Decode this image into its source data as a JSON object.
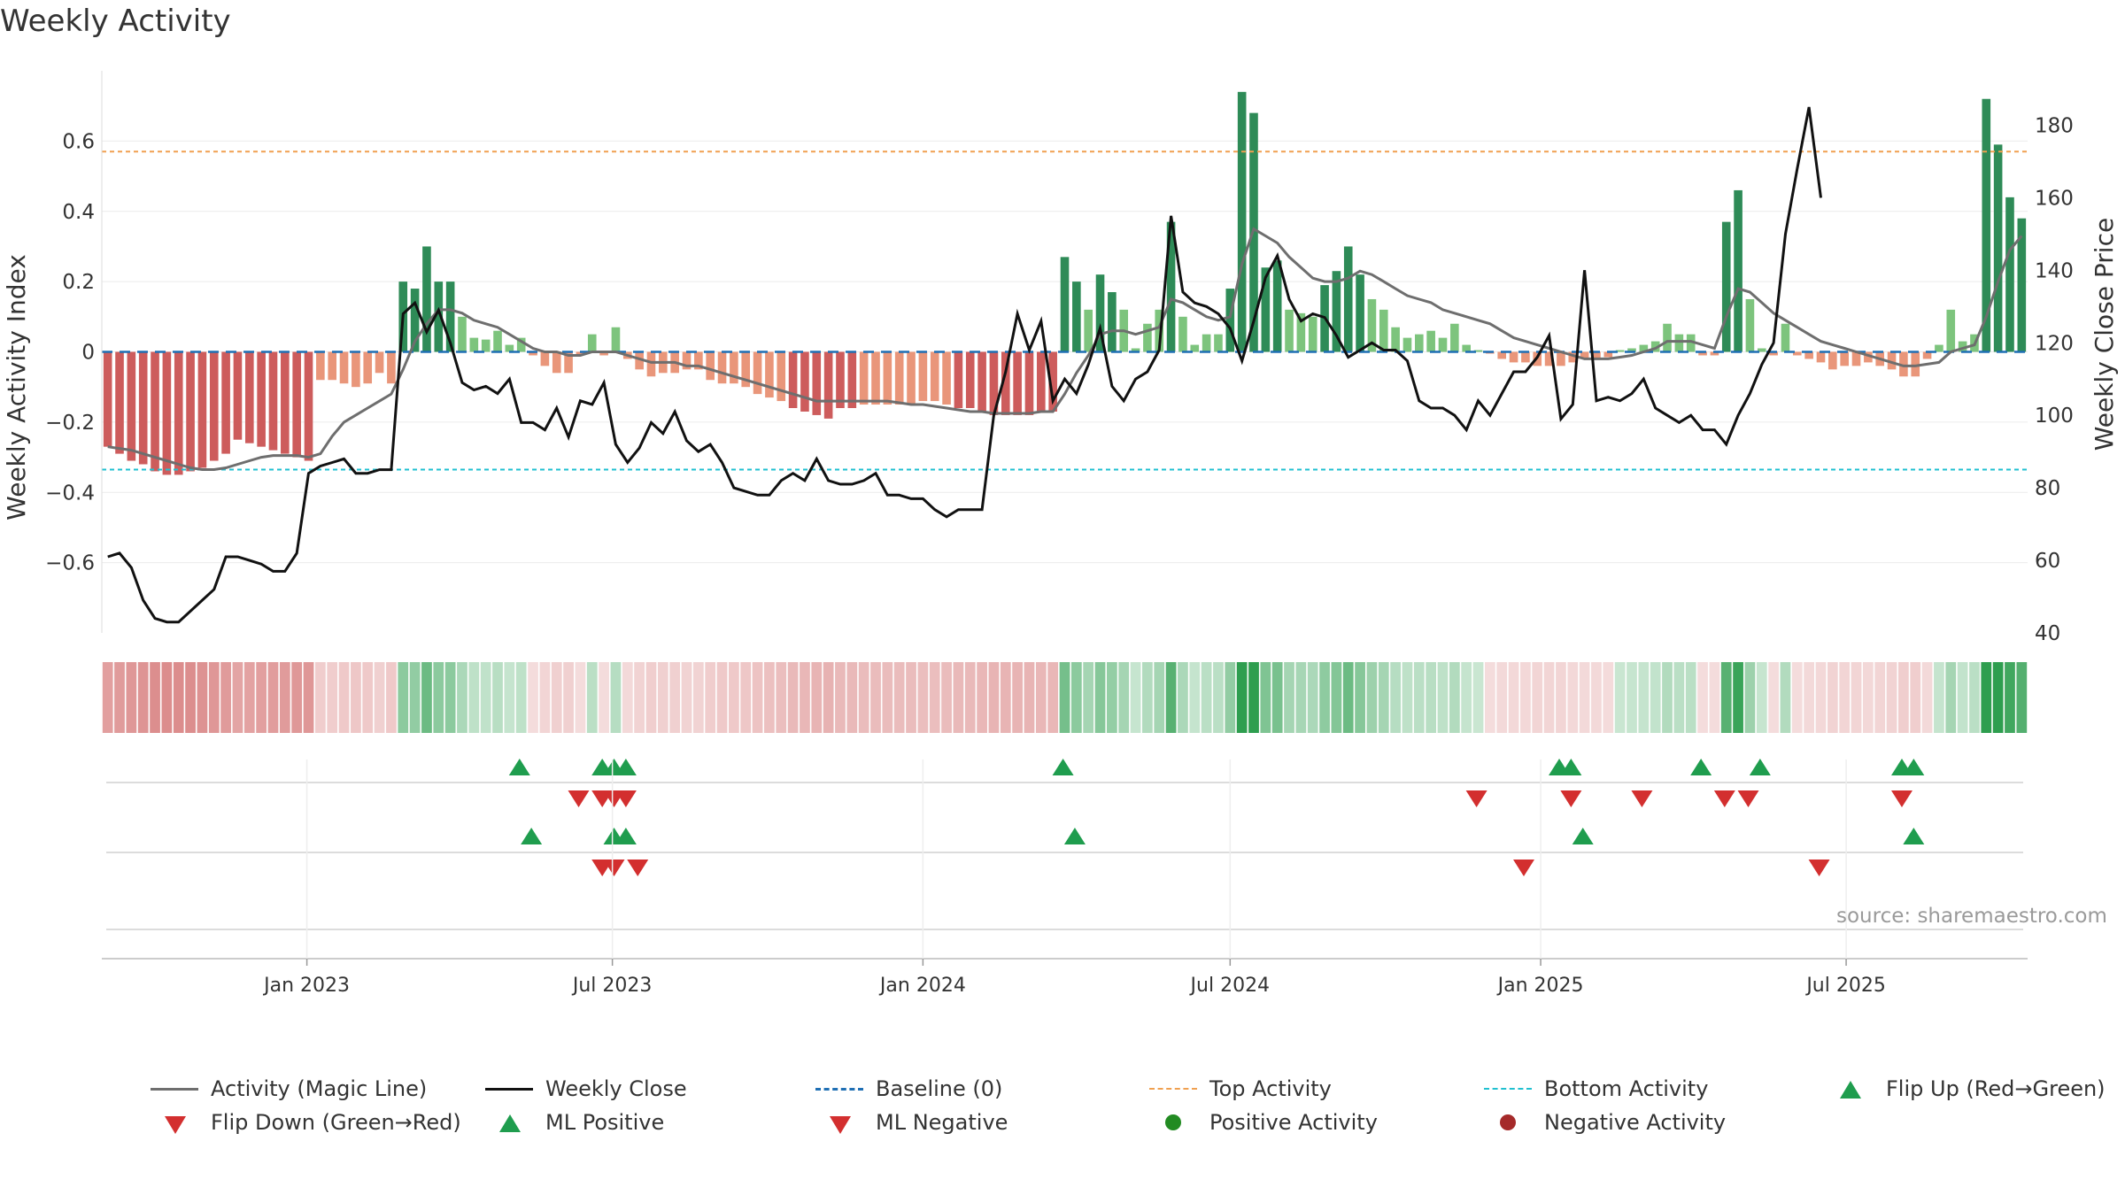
{
  "title": "Weekly Activity",
  "source": "source: sharemaestro.com",
  "colors": {
    "magic": "#6e6e6e",
    "close": "#111111",
    "baseline": "#1f6fb4",
    "top": "#f0a050",
    "bottom": "#20c0d0",
    "pos_strong": "#2e8b57",
    "pos_weak": "#7dc47d",
    "neg_strong": "#cd5c5c",
    "neg_weak": "#e9967a",
    "up_marker": "#1f9d4e",
    "down_marker": "#d32f2f",
    "pos_dot": "#228b22",
    "neg_dot": "#a52a2a"
  },
  "chart_data": {
    "type": "bar+line",
    "title": "Weekly Activity",
    "ylabel_left": "Weekly Activity Index",
    "ylabel_right": "Weekly Close Price",
    "ylim_left": [
      -0.8,
      0.8
    ],
    "ylim_right": [
      40,
      195
    ],
    "yticks_left": [
      -0.6,
      -0.4,
      -0.2,
      0,
      0.2,
      0.4,
      0.6
    ],
    "ytick_labels_left": [
      "−0.6",
      "−0.4",
      "−0.2",
      "0",
      "0.2",
      "0.4",
      "0.6"
    ],
    "yticks_right": [
      40,
      60,
      80,
      100,
      120,
      140,
      160,
      180
    ],
    "ytick_labels_right": [
      "40",
      "60",
      "80",
      "100",
      "120",
      "140",
      "160",
      "180"
    ],
    "x_start": "2022-09-05",
    "x_step_days": 7,
    "x_ticks": [
      "2023-01-01",
      "2023-07-01",
      "2024-01-01",
      "2024-07-01",
      "2025-01-01",
      "2025-07-01"
    ],
    "x_tick_labels": [
      "Jan 2023",
      "Jul 2023",
      "Jan 2024",
      "Jul 2024",
      "Jan 2025",
      "Jul 2025"
    ],
    "top_activity": 0.57,
    "bottom_activity": -0.335,
    "activity": [
      -0.27,
      -0.29,
      -0.31,
      -0.32,
      -0.34,
      -0.35,
      -0.35,
      -0.34,
      -0.33,
      -0.31,
      -0.29,
      -0.25,
      -0.26,
      -0.27,
      -0.28,
      -0.29,
      -0.3,
      -0.31,
      -0.08,
      -0.08,
      -0.09,
      -0.1,
      -0.09,
      -0.06,
      -0.09,
      0.2,
      0.18,
      0.3,
      0.2,
      0.2,
      0.1,
      0.04,
      0.035,
      0.06,
      0.02,
      0.04,
      -0.01,
      -0.04,
      -0.06,
      -0.06,
      -0.01,
      0.05,
      -0.01,
      0.07,
      -0.02,
      -0.05,
      -0.07,
      -0.06,
      -0.06,
      -0.05,
      -0.05,
      -0.08,
      -0.09,
      -0.09,
      -0.1,
      -0.12,
      -0.13,
      -0.14,
      -0.16,
      -0.17,
      -0.18,
      -0.19,
      -0.16,
      -0.16,
      -0.15,
      -0.15,
      -0.15,
      -0.15,
      -0.15,
      -0.14,
      -0.14,
      -0.15,
      -0.16,
      -0.16,
      -0.17,
      -0.18,
      -0.18,
      -0.18,
      -0.18,
      -0.17,
      -0.17,
      0.27,
      0.2,
      0.12,
      0.22,
      0.17,
      0.12,
      0.01,
      0.08,
      0.12,
      0.37,
      0.1,
      0.02,
      0.05,
      0.05,
      0.18,
      0.74,
      0.68,
      0.24,
      0.26,
      0.12,
      0.11,
      0.1,
      0.19,
      0.23,
      0.3,
      0.22,
      0.15,
      0.12,
      0.07,
      0.04,
      0.05,
      0.06,
      0.04,
      0.08,
      0.02,
      0.005,
      -0.005,
      -0.02,
      -0.03,
      -0.03,
      -0.04,
      -0.04,
      -0.04,
      -0.03,
      -0.02,
      -0.02,
      -0.015,
      0.005,
      0.01,
      0.02,
      0.03,
      0.08,
      0.05,
      0.05,
      -0.01,
      -0.01,
      0.37,
      0.46,
      0.15,
      0.01,
      -0.01,
      0.08,
      -0.01,
      -0.02,
      -0.03,
      -0.05,
      -0.04,
      -0.04,
      -0.03,
      -0.04,
      -0.05,
      -0.07,
      -0.07,
      -0.02,
      0.02,
      0.12,
      0.03,
      0.05,
      0.72,
      0.59,
      0.44,
      0.38
    ],
    "magic_line": [
      -0.27,
      -0.275,
      -0.28,
      -0.29,
      -0.3,
      -0.31,
      -0.32,
      -0.33,
      -0.335,
      -0.335,
      -0.33,
      -0.32,
      -0.31,
      -0.3,
      -0.295,
      -0.295,
      -0.295,
      -0.3,
      -0.29,
      -0.24,
      -0.2,
      -0.18,
      -0.16,
      -0.14,
      -0.12,
      -0.05,
      0.03,
      0.08,
      0.12,
      0.12,
      0.11,
      0.09,
      0.08,
      0.07,
      0.05,
      0.03,
      0.01,
      0.0,
      0.0,
      -0.01,
      -0.01,
      0.0,
      0.0,
      0.0,
      -0.01,
      -0.02,
      -0.03,
      -0.03,
      -0.03,
      -0.04,
      -0.04,
      -0.05,
      -0.06,
      -0.07,
      -0.08,
      -0.09,
      -0.1,
      -0.11,
      -0.12,
      -0.13,
      -0.14,
      -0.14,
      -0.14,
      -0.14,
      -0.14,
      -0.14,
      -0.14,
      -0.145,
      -0.15,
      -0.15,
      -0.155,
      -0.16,
      -0.165,
      -0.17,
      -0.17,
      -0.175,
      -0.175,
      -0.175,
      -0.175,
      -0.17,
      -0.17,
      -0.12,
      -0.06,
      -0.01,
      0.05,
      0.06,
      0.06,
      0.05,
      0.06,
      0.07,
      0.15,
      0.14,
      0.12,
      0.1,
      0.09,
      0.1,
      0.25,
      0.35,
      0.33,
      0.31,
      0.27,
      0.24,
      0.21,
      0.2,
      0.2,
      0.21,
      0.23,
      0.22,
      0.2,
      0.18,
      0.16,
      0.15,
      0.14,
      0.12,
      0.11,
      0.1,
      0.09,
      0.08,
      0.06,
      0.04,
      0.03,
      0.02,
      0.01,
      0.0,
      -0.01,
      -0.02,
      -0.02,
      -0.02,
      -0.015,
      -0.01,
      0.0,
      0.01,
      0.03,
      0.03,
      0.03,
      0.02,
      0.01,
      0.1,
      0.18,
      0.17,
      0.14,
      0.11,
      0.09,
      0.07,
      0.05,
      0.03,
      0.02,
      0.01,
      0.0,
      -0.01,
      -0.02,
      -0.03,
      -0.04,
      -0.04,
      -0.035,
      -0.03,
      0.0,
      0.01,
      0.02,
      0.1,
      0.2,
      0.29,
      0.33
    ],
    "close": [
      61,
      62,
      58,
      49,
      44,
      43,
      43,
      46,
      49,
      52,
      61,
      61,
      60,
      59,
      57,
      57,
      62,
      84,
      86,
      87,
      88,
      84,
      84,
      85,
      85,
      128,
      131,
      123,
      129,
      120,
      109,
      107,
      108,
      106,
      110,
      98,
      98,
      96,
      102,
      94,
      104,
      103,
      109,
      92,
      87,
      91,
      98,
      95,
      101,
      93,
      90,
      92,
      87,
      80,
      79,
      78,
      78,
      82,
      84,
      82,
      88,
      82,
      81,
      81,
      82,
      84,
      78,
      78,
      77,
      77,
      74,
      72,
      74,
      74,
      74,
      100,
      112,
      128,
      118,
      126,
      104,
      110,
      106,
      114,
      124,
      108,
      104,
      110,
      112,
      118,
      155,
      134,
      131,
      130,
      128,
      124,
      115,
      126,
      138,
      144,
      132,
      126,
      128,
      127,
      122,
      116,
      118,
      120,
      118,
      118,
      115,
      104,
      102,
      102,
      100,
      96,
      104,
      100,
      106,
      112,
      112,
      116,
      122,
      99,
      103,
      140,
      104,
      105,
      104,
      106,
      110,
      102,
      100,
      98,
      100,
      96,
      96,
      92,
      100,
      106,
      114,
      120,
      150,
      168,
      185,
      160
    ]
  },
  "markers": {
    "flip_up": [
      "2023-05-07",
      "2023-06-25",
      "2023-07-02",
      "2023-07-09",
      "2024-03-24",
      "2025-01-12",
      "2025-01-19",
      "2025-04-06",
      "2025-05-11",
      "2025-08-03",
      "2025-08-10"
    ],
    "flip_down": [
      "2023-06-11",
      "2023-06-25",
      "2023-07-02",
      "2023-07-09",
      "2024-11-24",
      "2025-01-19",
      "2025-03-02",
      "2025-04-20",
      "2025-05-04",
      "2025-08-03"
    ],
    "ml_positive": [
      "2023-05-14",
      "2023-07-02",
      "2023-07-09",
      "2024-03-31",
      "2025-01-26",
      "2025-08-10"
    ],
    "ml_negative": [
      "2023-06-25",
      "2023-07-02",
      "2023-07-16",
      "2024-12-22",
      "2025-06-15"
    ]
  },
  "legend": [
    {
      "label": "Activity (Magic Line)",
      "kind": "line",
      "color": "#6e6e6e"
    },
    {
      "label": "Weekly Close",
      "kind": "line",
      "color": "#111111"
    },
    {
      "label": "Baseline (0)",
      "kind": "dash",
      "color": "#1f6fb4"
    },
    {
      "label": "Top Activity",
      "kind": "dash",
      "color": "#f0a050"
    },
    {
      "label": "Bottom Activity",
      "kind": "dash",
      "color": "#20c0d0"
    },
    {
      "label": "Flip Up (Red→Green)",
      "kind": "tri-up",
      "color": "#1f9d4e"
    },
    {
      "label": "Flip Down (Green→Red)",
      "kind": "tri-down",
      "color": "#d32f2f"
    },
    {
      "label": "ML Positive",
      "kind": "tri-up",
      "color": "#1f9d4e"
    },
    {
      "label": "ML Negative",
      "kind": "tri-down",
      "color": "#d32f2f"
    },
    {
      "label": "Positive Activity",
      "kind": "dot",
      "color": "#228b22"
    },
    {
      "label": "Negative Activity",
      "kind": "dot",
      "color": "#a52a2a"
    }
  ]
}
